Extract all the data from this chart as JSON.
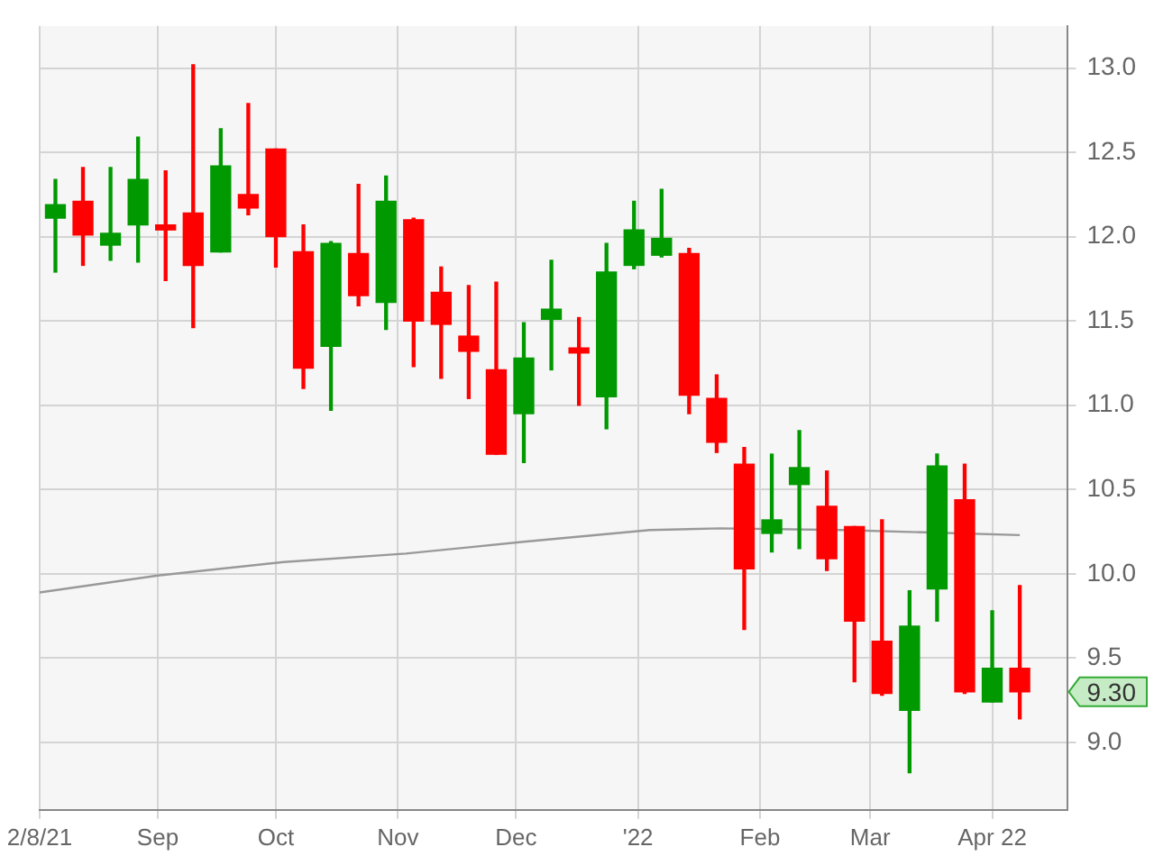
{
  "chart_data": {
    "type": "candlestick",
    "x": [
      "2021-08-06",
      "2021-08-13",
      "2021-08-20",
      "2021-08-27",
      "2021-09-03",
      "2021-09-10",
      "2021-09-17",
      "2021-09-24",
      "2021-10-01",
      "2021-10-08",
      "2021-10-15",
      "2021-10-22",
      "2021-10-29",
      "2021-11-05",
      "2021-11-12",
      "2021-11-19",
      "2021-11-26",
      "2021-12-03",
      "2021-12-10",
      "2021-12-17",
      "2021-12-24",
      "2021-12-31",
      "2022-01-07",
      "2022-01-14",
      "2022-01-21",
      "2022-01-28",
      "2022-02-04",
      "2022-02-11",
      "2022-02-18",
      "2022-02-25",
      "2022-03-04",
      "2022-03-11",
      "2022-03-18",
      "2022-03-25",
      "2022-04-01",
      "2022-04-08"
    ],
    "ohlc": [
      [
        12.11,
        12.34,
        11.79,
        12.19
      ],
      [
        12.21,
        12.41,
        11.83,
        12.01
      ],
      [
        11.95,
        12.41,
        11.86,
        12.02
      ],
      [
        12.07,
        12.59,
        11.85,
        12.34
      ],
      [
        12.07,
        12.39,
        11.74,
        12.04
      ],
      [
        12.14,
        13.02,
        11.46,
        11.83
      ],
      [
        11.91,
        12.64,
        11.91,
        12.42
      ],
      [
        12.25,
        12.79,
        12.13,
        12.17
      ],
      [
        12.52,
        12.52,
        11.82,
        12.0
      ],
      [
        11.91,
        12.07,
        11.1,
        11.22
      ],
      [
        11.35,
        11.97,
        10.97,
        11.96
      ],
      [
        11.9,
        12.31,
        11.59,
        11.65
      ],
      [
        11.61,
        12.36,
        11.45,
        12.21
      ],
      [
        12.1,
        12.11,
        11.23,
        11.5
      ],
      [
        11.67,
        11.82,
        11.16,
        11.48
      ],
      [
        11.41,
        11.71,
        11.04,
        11.32
      ],
      [
        11.21,
        11.73,
        10.71,
        10.71
      ],
      [
        10.95,
        11.49,
        10.66,
        11.28
      ],
      [
        11.51,
        11.86,
        11.21,
        11.57
      ],
      [
        11.34,
        11.52,
        11.0,
        11.31
      ],
      [
        11.05,
        11.96,
        10.86,
        11.79
      ],
      [
        11.83,
        12.21,
        11.81,
        12.04
      ],
      [
        11.89,
        12.28,
        11.88,
        11.99
      ],
      [
        11.9,
        11.93,
        10.95,
        11.06
      ],
      [
        11.04,
        11.18,
        10.72,
        10.78
      ],
      [
        10.65,
        10.75,
        9.67,
        10.03
      ],
      [
        10.24,
        10.71,
        10.13,
        10.32
      ],
      [
        10.53,
        10.85,
        10.15,
        10.63
      ],
      [
        10.4,
        10.61,
        10.02,
        10.09
      ],
      [
        10.28,
        10.28,
        9.36,
        9.72
      ],
      [
        9.6,
        10.32,
        9.28,
        9.29
      ],
      [
        9.19,
        9.9,
        8.82,
        9.69
      ],
      [
        9.91,
        10.71,
        9.72,
        10.64
      ],
      [
        10.44,
        10.65,
        9.29,
        9.3
      ],
      [
        9.24,
        9.78,
        9.24,
        9.44
      ],
      [
        9.44,
        9.93,
        9.14,
        9.3
      ]
    ],
    "colors": [
      "#009900",
      "#ff0000",
      "#009900",
      "#009900",
      "#ff0000",
      "#ff0000",
      "#009900",
      "#ff0000",
      "#ff0000",
      "#ff0000",
      "#009900",
      "#ff0000",
      "#009900",
      "#ff0000",
      "#ff0000",
      "#ff0000",
      "#ff0000",
      "#009900",
      "#009900",
      "#ff0000",
      "#009900",
      "#009900",
      "#009900",
      "#ff0000",
      "#ff0000",
      "#ff0000",
      "#009900",
      "#009900",
      "#ff0000",
      "#ff0000",
      "#ff0000",
      "#009900",
      "#009900",
      "#ff0000",
      "#009900",
      "#ff0000"
    ],
    "series": [
      {
        "type": "line",
        "x": [
          "2021-08-02",
          "2021-09-01",
          "2021-10-03",
          "2021-11-03",
          "2021-12-03",
          "2022-01-04",
          "2022-01-22",
          "2022-02-22",
          "2022-04-08"
        ],
        "values": [
          9.89,
          9.99,
          10.07,
          10.12,
          10.19,
          10.26,
          10.27,
          10.26,
          10.23
        ],
        "color": "#999999"
      }
    ],
    "xlim": [
      "2021-08-02",
      "2022-04-20"
    ],
    "xticks": [
      {
        "value": "2021-08-02",
        "label": "2/8/21"
      },
      {
        "value": "2021-09-01",
        "label": "Sep"
      },
      {
        "value": "2021-10-01",
        "label": "Oct"
      },
      {
        "value": "2021-11-01",
        "label": "Nov"
      },
      {
        "value": "2021-12-01",
        "label": "Dec"
      },
      {
        "value": "2022-01-01",
        "label": "'22"
      },
      {
        "value": "2022-02-01",
        "label": "Feb"
      },
      {
        "value": "2022-03-01",
        "label": "Mar"
      },
      {
        "value": "2022-04-01",
        "label": "Apr 22"
      }
    ],
    "ylim": [
      8.6,
      13.25
    ],
    "yticks": [
      {
        "value": 9,
        "label": "9.0"
      },
      9.5,
      {
        "value": 10,
        "label": "10.0"
      },
      10.5,
      {
        "value": 11,
        "label": "11.0"
      },
      11.5,
      {
        "value": 12,
        "label": "12.0"
      },
      12.5,
      {
        "value": 13,
        "label": "13.0"
      }
    ],
    "grid": true,
    "legend": false,
    "annotations": [
      {
        "text": "9.30",
        "y": 9.3
      }
    ]
  }
}
